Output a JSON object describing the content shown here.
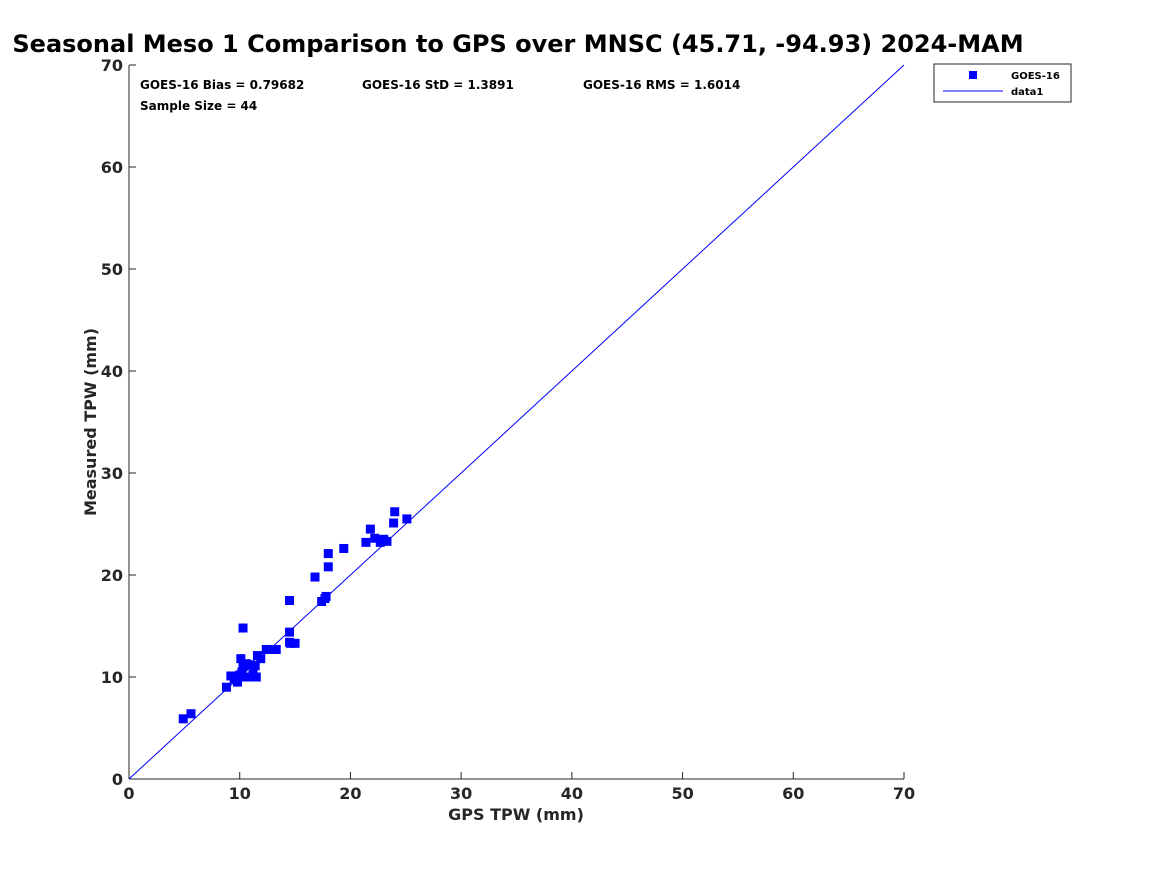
{
  "chart_data": {
    "type": "scatter",
    "title": "Seasonal Meso 1 Comparison to GPS over MNSC (45.71, -94.93) 2024-MAM",
    "xlabel": "GPS TPW (mm)",
    "ylabel": "Measured TPW (mm)",
    "xlim": [
      0,
      70
    ],
    "ylim": [
      0,
      70
    ],
    "xticks": [
      0,
      10,
      20,
      30,
      40,
      50,
      60,
      70
    ],
    "yticks": [
      0,
      10,
      20,
      30,
      40,
      50,
      60,
      70
    ],
    "grid": false,
    "legend_position": "top-right, outside",
    "stats": {
      "bias": "GOES-16 Bias = 0.79682",
      "std": "GOES-16 StD = 1.3891",
      "rms": "GOES-16 RMS = 1.6014",
      "sample": "Sample Size = 44"
    },
    "series": [
      {
        "name": "GOES-16",
        "kind": "scatter",
        "marker": "square",
        "color": "#0000ff",
        "x": [
          4.9,
          5.6,
          8.8,
          9.2,
          9.5,
          9.8,
          10.0,
          10.1,
          10.2,
          10.3,
          10.4,
          10.6,
          10.8,
          11.0,
          11.2,
          11.4,
          11.5,
          11.6,
          11.9,
          12.4,
          12.9,
          13.3,
          14.5,
          14.5,
          14.6,
          15.0,
          17.4,
          17.7,
          17.8,
          18.0,
          18.0,
          16.8,
          14.5,
          10.3,
          19.4,
          21.4,
          21.8,
          22.2,
          22.7,
          23.0,
          23.3,
          23.9,
          24.0,
          25.1
        ],
        "y": [
          5.9,
          6.4,
          9.0,
          10.1,
          9.8,
          9.5,
          10.2,
          11.8,
          10.5,
          11.0,
          10.0,
          11.3,
          10.0,
          11.2,
          10.3,
          11.1,
          10.0,
          12.1,
          11.8,
          12.7,
          12.7,
          12.7,
          13.4,
          14.4,
          13.3,
          13.3,
          17.4,
          17.7,
          17.9,
          20.8,
          22.1,
          19.8,
          17.5,
          14.8,
          22.6,
          23.2,
          24.5,
          23.6,
          23.2,
          23.5,
          23.3,
          25.1,
          26.2,
          25.5
        ]
      },
      {
        "name": "data1",
        "kind": "line",
        "color": "#0000ff",
        "x": [
          0,
          70
        ],
        "y": [
          0,
          70
        ]
      }
    ]
  }
}
